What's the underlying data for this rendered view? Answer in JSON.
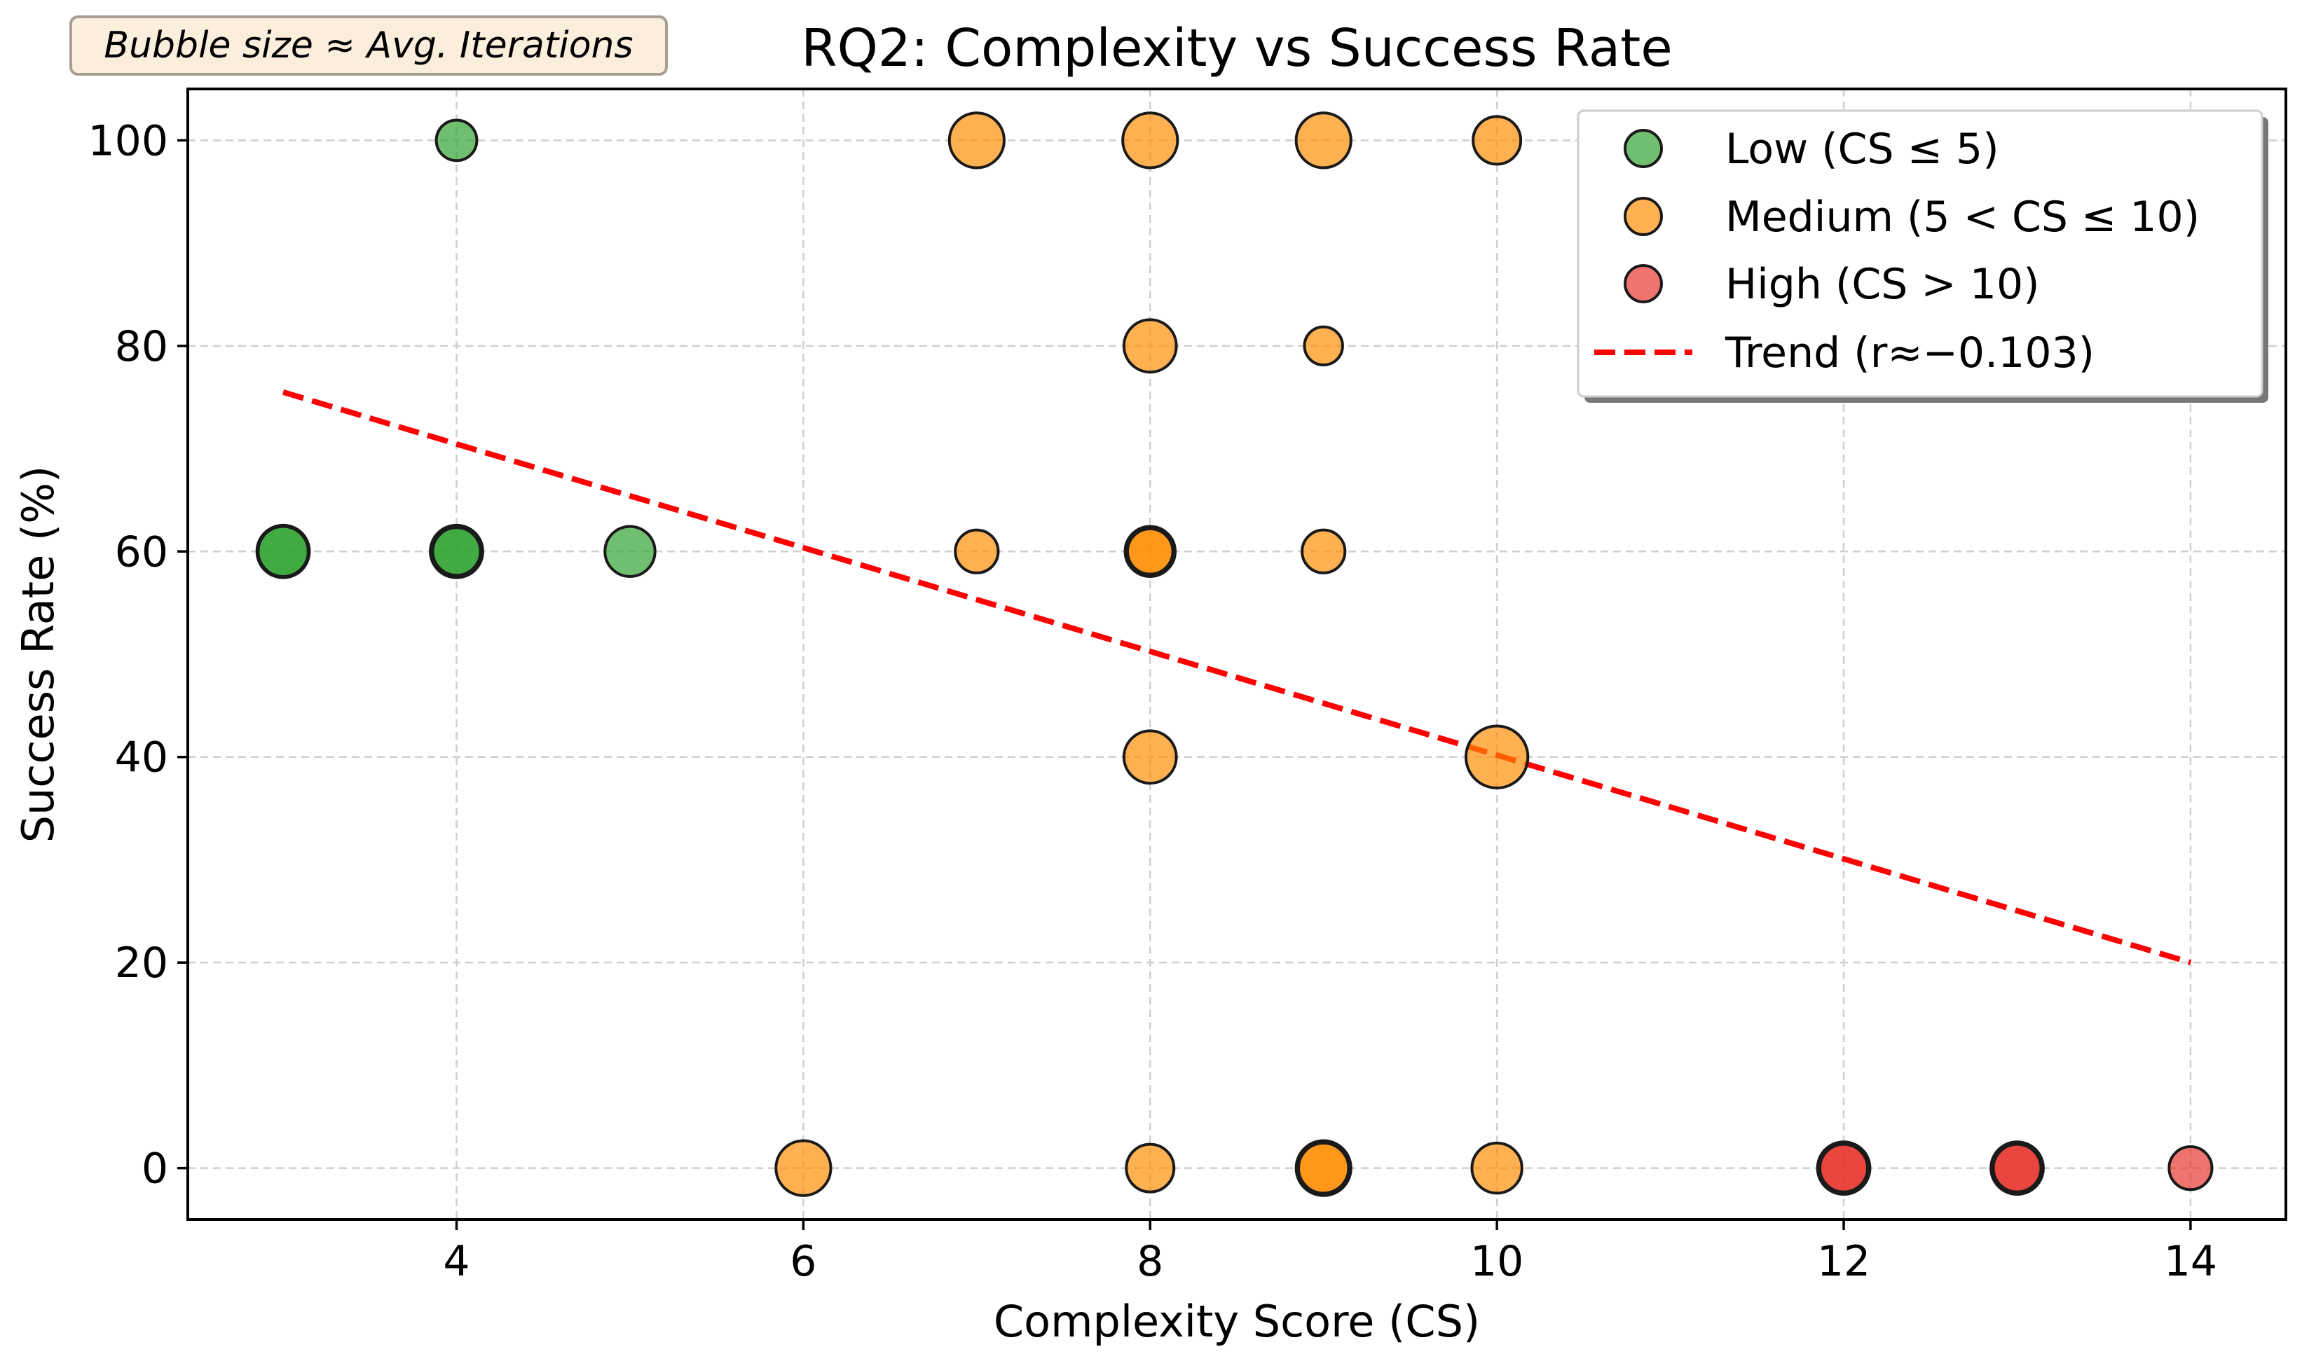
{
  "chart_data": {
    "type": "scatter",
    "title": "RQ2: Complexity vs Success Rate",
    "xlabel": "Complexity Score (CS)",
    "ylabel": "Success Rate (%)",
    "xlim": [
      2.45,
      14.55
    ],
    "ylim": [
      -5,
      105
    ],
    "xticks": [
      4,
      6,
      8,
      10,
      12,
      14
    ],
    "yticks": [
      0,
      20,
      40,
      60,
      80,
      100
    ],
    "grid": true,
    "legend_position": "top-right",
    "annotation": "Bubble size ≈ Avg. Iterations",
    "series": [
      {
        "name": "Low (CS ≤ 5)",
        "color": "#2ca02c",
        "points": [
          {
            "x": 3,
            "y": 60,
            "size": 2.2
          },
          {
            "x": 3,
            "y": 60,
            "size": 2.1
          },
          {
            "x": 4,
            "y": 100,
            "size": 1.7
          },
          {
            "x": 4,
            "y": 60,
            "size": 2.2
          },
          {
            "x": 4,
            "y": 60,
            "size": 2.0
          },
          {
            "x": 5,
            "y": 60,
            "size": 2.1
          }
        ]
      },
      {
        "name": "Medium (5 < CS ≤ 10)",
        "color": "#ff8c00",
        "points": [
          {
            "x": 6,
            "y": 0,
            "size": 2.3
          },
          {
            "x": 7,
            "y": 100,
            "size": 2.3
          },
          {
            "x": 7,
            "y": 60,
            "size": 1.8
          },
          {
            "x": 8,
            "y": 100,
            "size": 2.3
          },
          {
            "x": 8,
            "y": 80,
            "size": 2.2
          },
          {
            "x": 8,
            "y": 60,
            "size": 2.1
          },
          {
            "x": 8,
            "y": 60,
            "size": 1.9
          },
          {
            "x": 8,
            "y": 40,
            "size": 2.2
          },
          {
            "x": 8,
            "y": 0,
            "size": 2.0
          },
          {
            "x": 9,
            "y": 100,
            "size": 2.3
          },
          {
            "x": 9,
            "y": 80,
            "size": 1.6
          },
          {
            "x": 9,
            "y": 60,
            "size": 1.8
          },
          {
            "x": 9,
            "y": 0,
            "size": 2.3
          },
          {
            "x": 9,
            "y": 0,
            "size": 2.1
          },
          {
            "x": 10,
            "y": 100,
            "size": 2.0
          },
          {
            "x": 10,
            "y": 40,
            "size": 2.6
          },
          {
            "x": 10,
            "y": 0,
            "size": 2.1
          }
        ]
      },
      {
        "name": "High (CS > 10)",
        "color": "#e8302a",
        "points": [
          {
            "x": 12,
            "y": 0,
            "size": 2.2
          },
          {
            "x": 12,
            "y": 0,
            "size": 2.0
          },
          {
            "x": 13,
            "y": 0,
            "size": 2.2
          },
          {
            "x": 13,
            "y": 0,
            "size": 2.0
          },
          {
            "x": 14,
            "y": 0,
            "size": 1.8
          }
        ]
      }
    ],
    "trend": {
      "name": "Trend (r≈−0.103)",
      "color": "#ff0000",
      "x": [
        3,
        14
      ],
      "y": [
        75.5,
        20
      ]
    }
  }
}
